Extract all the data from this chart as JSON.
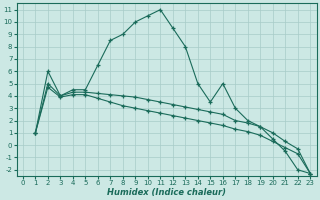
{
  "title": "",
  "xlabel": "Humidex (Indice chaleur)",
  "background_color": "#cce8e4",
  "grid_color": "#a8ccc8",
  "line_color": "#1a6b5a",
  "xlim": [
    -0.5,
    23.5
  ],
  "ylim": [
    -2.5,
    11.5
  ],
  "xticks": [
    0,
    1,
    2,
    3,
    4,
    5,
    6,
    7,
    8,
    9,
    10,
    11,
    12,
    13,
    14,
    15,
    16,
    17,
    18,
    19,
    20,
    21,
    22,
    23
  ],
  "yticks": [
    -2,
    -1,
    0,
    1,
    2,
    3,
    4,
    5,
    6,
    7,
    8,
    9,
    10,
    11
  ],
  "line1_x": [
    1,
    2,
    3,
    4,
    5,
    6,
    7,
    8,
    9,
    10,
    11,
    12,
    13,
    14,
    15,
    16,
    17,
    18,
    19,
    20,
    21,
    22,
    23
  ],
  "line1_y": [
    1,
    6,
    4,
    4.5,
    4.5,
    6.5,
    8.5,
    9,
    10,
    10.5,
    11,
    9.5,
    8,
    5,
    3.5,
    5,
    3,
    2,
    1.5,
    0.5,
    -0.5,
    -2,
    -2.3
  ],
  "line2_x": [
    1,
    2,
    3,
    4,
    5,
    6,
    7,
    8,
    9,
    10,
    11,
    12,
    13,
    14,
    15,
    16,
    17,
    18,
    19,
    20,
    21,
    22,
    23
  ],
  "line2_y": [
    1,
    5,
    4,
    4.3,
    4.3,
    4.2,
    4.1,
    4.0,
    3.9,
    3.7,
    3.5,
    3.3,
    3.1,
    2.9,
    2.7,
    2.5,
    2.0,
    1.8,
    1.5,
    1.0,
    0.3,
    -0.3,
    -2.3
  ],
  "line3_x": [
    1,
    2,
    3,
    4,
    5,
    6,
    7,
    8,
    9,
    10,
    11,
    12,
    13,
    14,
    15,
    16,
    17,
    18,
    19,
    20,
    21,
    22,
    23
  ],
  "line3_y": [
    1,
    4.7,
    3.9,
    4.1,
    4.1,
    3.8,
    3.5,
    3.2,
    3.0,
    2.8,
    2.6,
    2.4,
    2.2,
    2.0,
    1.8,
    1.6,
    1.3,
    1.1,
    0.8,
    0.3,
    -0.2,
    -0.7,
    -2.3
  ],
  "tick_fontsize": 5,
  "xlabel_fontsize": 6,
  "lw": 0.8,
  "marker_size": 3.0
}
